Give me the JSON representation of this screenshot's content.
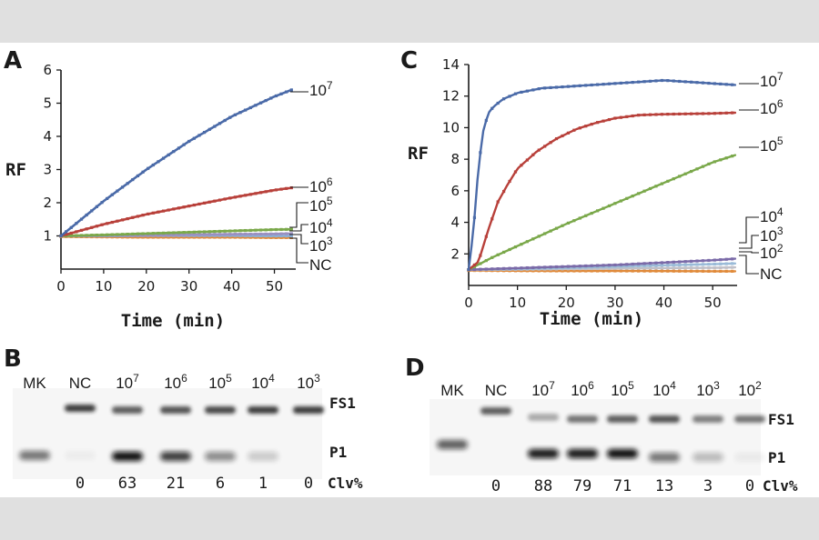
{
  "chart_data": [
    {
      "panel": "A",
      "type": "line",
      "xlabel": "Time (min)",
      "ylabel": "RF",
      "xlim": [
        0,
        55
      ],
      "ylim": [
        0,
        6
      ],
      "xticks": [
        "0",
        "10",
        "20",
        "30",
        "40",
        "50"
      ],
      "yticks": [
        "1",
        "2",
        "3",
        "4",
        "5",
        "6"
      ],
      "series": [
        {
          "name": "10^7",
          "color": "#4a6aa8",
          "x": [
            0,
            10,
            20,
            30,
            40,
            50,
            54
          ],
          "values": [
            1.0,
            2.05,
            3.0,
            3.85,
            4.6,
            5.2,
            5.4
          ]
        },
        {
          "name": "10^6",
          "color": "#b8403a",
          "x": [
            0,
            10,
            20,
            30,
            40,
            50,
            54
          ],
          "values": [
            1.0,
            1.35,
            1.65,
            1.9,
            2.15,
            2.38,
            2.45
          ]
        },
        {
          "name": "10^5",
          "color": "#7aa84a",
          "x": [
            0,
            10,
            20,
            30,
            40,
            50,
            54
          ],
          "values": [
            1.0,
            1.03,
            1.07,
            1.11,
            1.15,
            1.19,
            1.2
          ]
        },
        {
          "name": "10^4",
          "color": "#9a90c0",
          "x": [
            0,
            10,
            20,
            30,
            40,
            50,
            54
          ],
          "values": [
            1.0,
            1.01,
            1.02,
            1.04,
            1.05,
            1.06,
            1.07
          ]
        },
        {
          "name": "10^3",
          "color": "#8ab0d8",
          "x": [
            0,
            10,
            20,
            30,
            40,
            50,
            54
          ],
          "values": [
            1.0,
            1.0,
            1.01,
            1.01,
            1.01,
            1.0,
            1.0
          ]
        },
        {
          "name": "NC",
          "color": "#e08a3a",
          "x": [
            0,
            10,
            20,
            30,
            40,
            50,
            54
          ],
          "values": [
            0.98,
            0.97,
            0.96,
            0.96,
            0.96,
            0.95,
            0.95
          ]
        }
      ],
      "labels": [
        {
          "base": "10",
          "exp": "7"
        },
        {
          "base": "10",
          "exp": "6"
        },
        {
          "base": "10",
          "exp": "5"
        },
        {
          "base": "10",
          "exp": "4"
        },
        {
          "base": "10",
          "exp": "3"
        },
        {
          "base": "NC",
          "exp": ""
        }
      ]
    },
    {
      "panel": "C",
      "type": "line",
      "xlabel": "Time (min)",
      "ylabel": "RF",
      "xlim": [
        0,
        55
      ],
      "ylim": [
        0,
        14
      ],
      "xticks": [
        "0",
        "10",
        "20",
        "30",
        "40",
        "50"
      ],
      "yticks": [
        "2",
        "4",
        "6",
        "8",
        "10",
        "12",
        "14"
      ],
      "series": [
        {
          "name": "10^7",
          "color": "#4a6aa8",
          "x": [
            0,
            1,
            2,
            3,
            4,
            5,
            7,
            10,
            15,
            20,
            30,
            40,
            50,
            55
          ],
          "values": [
            1.0,
            3.5,
            7.5,
            9.8,
            10.9,
            11.3,
            11.8,
            12.2,
            12.5,
            12.6,
            12.8,
            13.0,
            12.8,
            12.7
          ]
        },
        {
          "name": "10^6",
          "color": "#b8403a",
          "x": [
            0,
            2,
            4,
            6,
            8,
            10,
            14,
            18,
            22,
            26,
            30,
            35,
            40,
            50,
            55
          ],
          "values": [
            1.0,
            1.5,
            3.5,
            5.3,
            6.4,
            7.4,
            8.5,
            9.3,
            9.9,
            10.3,
            10.6,
            10.8,
            10.85,
            10.9,
            10.95
          ]
        },
        {
          "name": "10^5",
          "color": "#7aa84a",
          "x": [
            0,
            5,
            10,
            20,
            30,
            40,
            50,
            55
          ],
          "values": [
            1.0,
            1.8,
            2.5,
            3.9,
            5.2,
            6.5,
            7.8,
            8.3
          ]
        },
        {
          "name": "10^4",
          "color": "#7a6aa8",
          "x": [
            0,
            10,
            20,
            30,
            40,
            50,
            55
          ],
          "values": [
            1.0,
            1.1,
            1.2,
            1.3,
            1.45,
            1.6,
            1.7
          ]
        },
        {
          "name": "10^3",
          "color": "#9abbd8",
          "x": [
            0,
            10,
            20,
            30,
            40,
            50,
            55
          ],
          "values": [
            1.0,
            1.05,
            1.12,
            1.2,
            1.28,
            1.35,
            1.4
          ]
        },
        {
          "name": "10^2",
          "color": "#c0c0c8",
          "x": [
            0,
            10,
            20,
            30,
            40,
            50,
            55
          ],
          "values": [
            1.0,
            1.02,
            1.05,
            1.08,
            1.1,
            1.12,
            1.15
          ]
        },
        {
          "name": "NC",
          "color": "#e08a3a",
          "x": [
            0,
            10,
            20,
            30,
            40,
            50,
            55
          ],
          "values": [
            0.95,
            0.93,
            0.92,
            0.92,
            0.91,
            0.9,
            0.9
          ]
        }
      ],
      "labels": [
        {
          "base": "10",
          "exp": "7"
        },
        {
          "base": "10",
          "exp": "6"
        },
        {
          "base": "10",
          "exp": "5"
        },
        {
          "base": "10",
          "exp": "4"
        },
        {
          "base": "10",
          "exp": "3"
        },
        {
          "base": "10",
          "exp": "2"
        },
        {
          "base": "NC",
          "exp": ""
        }
      ]
    }
  ],
  "panels": {
    "a": "A",
    "b": "B",
    "c": "C",
    "d": "D"
  },
  "gel_b": {
    "lanes": [
      {
        "base": "MK",
        "exp": "",
        "value": ""
      },
      {
        "base": "NC",
        "exp": "",
        "value": "0"
      },
      {
        "base": "10",
        "exp": "7",
        "value": "63"
      },
      {
        "base": "10",
        "exp": "6",
        "value": "21"
      },
      {
        "base": "10",
        "exp": "5",
        "value": "6"
      },
      {
        "base": "10",
        "exp": "4",
        "value": "1"
      },
      {
        "base": "10",
        "exp": "3",
        "value": "0"
      }
    ],
    "band_top": "FS1",
    "band_bottom": "P1",
    "clv_label": "Clv%"
  },
  "gel_d": {
    "lanes": [
      {
        "base": "MK",
        "exp": "",
        "value": ""
      },
      {
        "base": "NC",
        "exp": "",
        "value": "0"
      },
      {
        "base": "10",
        "exp": "7",
        "value": "88"
      },
      {
        "base": "10",
        "exp": "6",
        "value": "79"
      },
      {
        "base": "10",
        "exp": "5",
        "value": "71"
      },
      {
        "base": "10",
        "exp": "4",
        "value": "13"
      },
      {
        "base": "10",
        "exp": "3",
        "value": "3"
      },
      {
        "base": "10",
        "exp": "2",
        "value": "0"
      }
    ],
    "band_top": "FS1",
    "band_bottom": "P1",
    "clv_label": "Clv%"
  }
}
